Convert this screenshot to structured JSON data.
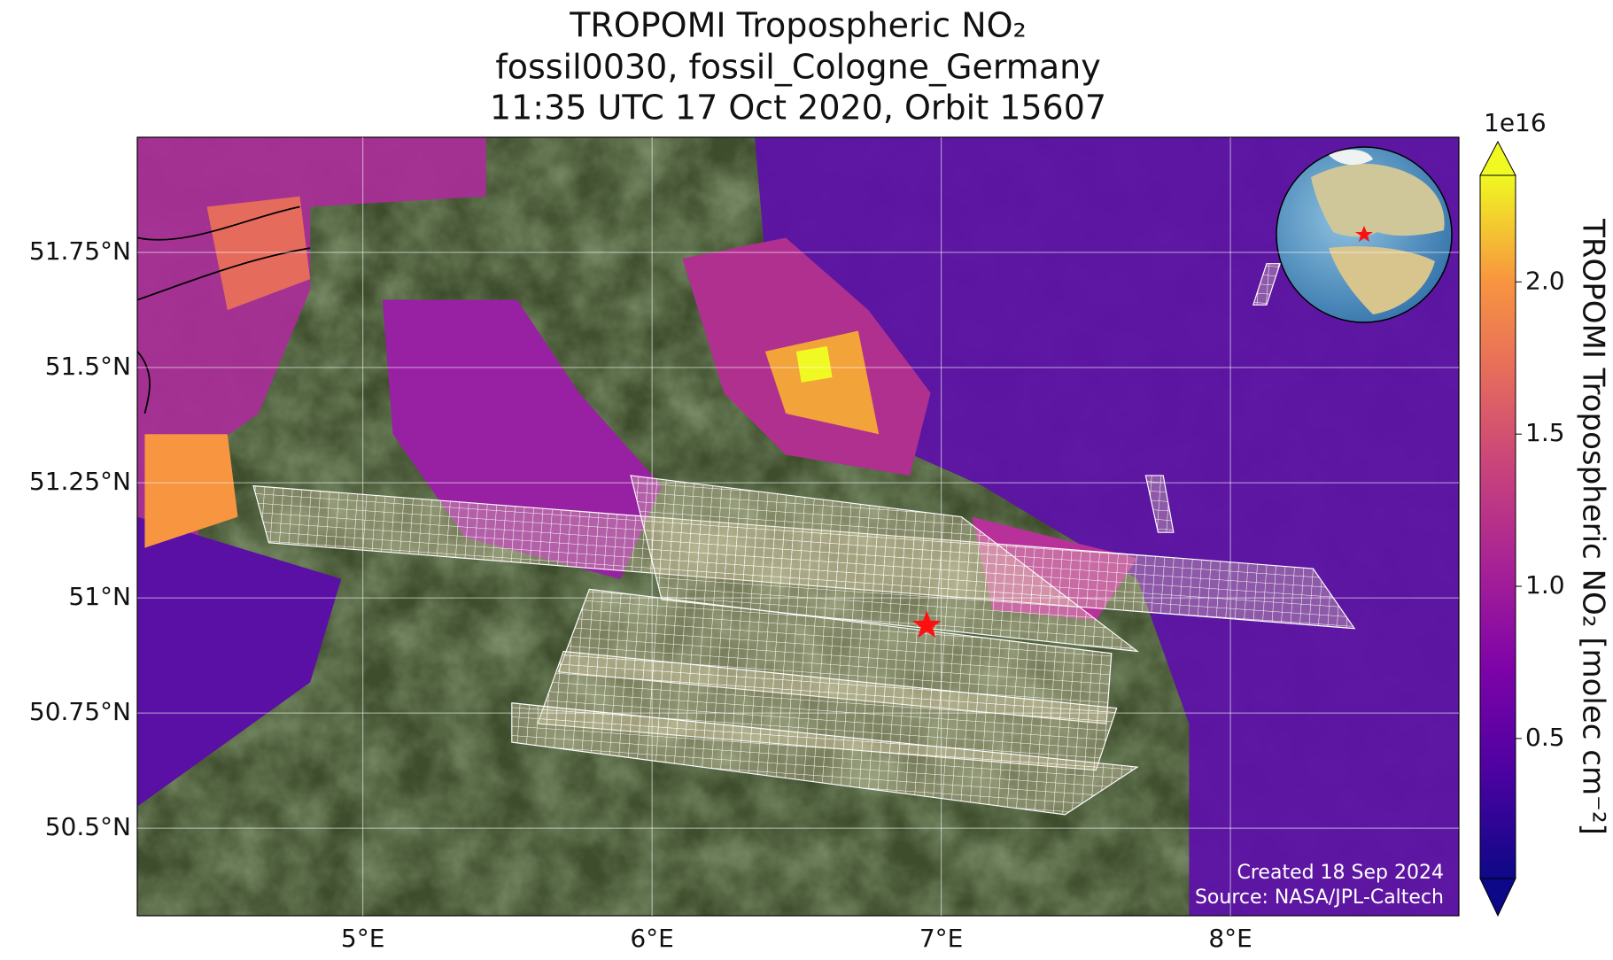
{
  "chart_data": {
    "type": "map",
    "title": [
      "TROPOMI Tropospheric NO₂",
      "fossil0030, fossil_Cologne_Germany",
      "11:35 UTC 17 Oct 2020, Orbit 15607"
    ],
    "xlim": [
      4.22,
      8.79
    ],
    "ylim": [
      50.31,
      52.0
    ],
    "xticks": [
      {
        "value": 5,
        "label": "5°E"
      },
      {
        "value": 6,
        "label": "6°E"
      },
      {
        "value": 7,
        "label": "7°E"
      },
      {
        "value": 8,
        "label": "8°E"
      }
    ],
    "yticks": [
      {
        "value": 50.5,
        "label": "50.5°N"
      },
      {
        "value": 50.75,
        "label": "50.75°N"
      },
      {
        "value": 51,
        "label": "51°N"
      },
      {
        "value": 51.25,
        "label": "51.25°N"
      },
      {
        "value": 51.5,
        "label": "51.5°N"
      },
      {
        "value": 51.75,
        "label": "51.75°N"
      }
    ],
    "grid": true,
    "site": {
      "lon": 6.95,
      "lat": 50.94,
      "color": "#ff1010"
    },
    "colorbar": {
      "label": "TROPOMI Tropospheric NO₂ [molec cm⁻²]",
      "offset": "1e16",
      "lim": [
        0.04,
        2.35
      ],
      "ticks": [
        0.5,
        {
          "value": 1,
          "label": "1.0"
        },
        1.5,
        {
          "value": 2,
          "label": "2.0"
        }
      ]
    },
    "annotations": [
      "Created 18 Sep 2024",
      "Source: NASA/JPL-Caltech"
    ]
  }
}
